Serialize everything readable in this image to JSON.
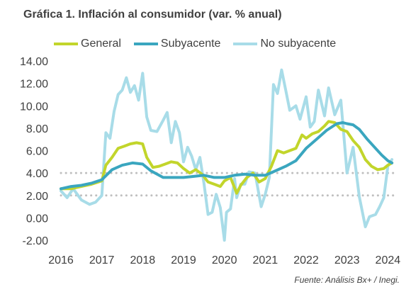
{
  "title": "Gráfica 1. Inflación al consumidor (var. % anual)",
  "source": "Fuente: Análisis Bx+ /  Inegi.",
  "colors": {
    "general": "#c2d52b",
    "subyacente": "#3aa6bf",
    "no_subyacente": "#a8dce8",
    "reference": "#bfbfbf",
    "text": "#404040"
  },
  "chart_data": {
    "type": "line",
    "title": "Gráfica 1. Inflación al consumidor (var. % anual)",
    "xlabel": "",
    "ylabel": "",
    "xlim": [
      2016.0,
      2024.15
    ],
    "ylim": [
      -2.0,
      14.0
    ],
    "ytick_labels": [
      "-2.00",
      "0.00",
      "2.00",
      "4.00",
      "6.00",
      "8.00",
      "10.00",
      "12.00",
      "14.00"
    ],
    "xtick_labels": [
      "2016",
      "2017",
      "2018",
      "2019",
      "2020",
      "2021",
      "2022",
      "2023",
      "2024"
    ],
    "reference_lines": [
      2.0,
      4.0
    ],
    "grid": false,
    "legend": "top",
    "series": [
      {
        "name": "General",
        "key": "general",
        "x": [
          2016.0,
          2016.25,
          2016.5,
          2016.75,
          2017.0,
          2017.1,
          2017.25,
          2017.4,
          2017.55,
          2017.7,
          2017.85,
          2018.0,
          2018.1,
          2018.25,
          2018.4,
          2018.55,
          2018.7,
          2018.85,
          2019.0,
          2019.15,
          2019.3,
          2019.45,
          2019.6,
          2019.75,
          2019.9,
          2020.0,
          2020.15,
          2020.3,
          2020.4,
          2020.55,
          2020.7,
          2020.85,
          2021.0,
          2021.15,
          2021.3,
          2021.45,
          2021.6,
          2021.75,
          2021.9,
          2022.0,
          2022.15,
          2022.3,
          2022.45,
          2022.55,
          2022.7,
          2022.85,
          2023.0,
          2023.15,
          2023.3,
          2023.45,
          2023.6,
          2023.75,
          2023.9,
          2024.0,
          2024.1
        ],
        "y": [
          2.6,
          2.6,
          2.8,
          3.0,
          3.3,
          4.7,
          5.4,
          6.2,
          6.4,
          6.6,
          6.7,
          6.6,
          5.4,
          4.5,
          4.6,
          4.8,
          5.0,
          4.9,
          4.4,
          4.0,
          4.3,
          3.9,
          3.2,
          3.0,
          2.8,
          3.3,
          3.6,
          2.2,
          2.9,
          3.6,
          4.0,
          3.2,
          3.5,
          4.6,
          6.0,
          5.8,
          6.0,
          6.2,
          7.4,
          7.1,
          7.5,
          7.7,
          8.2,
          8.6,
          8.5,
          7.9,
          7.7,
          6.9,
          6.3,
          5.2,
          4.6,
          4.3,
          4.4,
          4.7,
          4.9
        ]
      },
      {
        "name": "Subyacente",
        "key": "subyacente",
        "x": [
          2016.0,
          2016.25,
          2016.5,
          2016.75,
          2017.0,
          2017.25,
          2017.5,
          2017.75,
          2018.0,
          2018.2,
          2018.5,
          2018.75,
          2019.0,
          2019.25,
          2019.5,
          2019.75,
          2020.0,
          2020.25,
          2020.5,
          2020.75,
          2021.0,
          2021.25,
          2021.5,
          2021.75,
          2022.0,
          2022.25,
          2022.5,
          2022.75,
          2022.9,
          2023.0,
          2023.15,
          2023.3,
          2023.5,
          2023.7,
          2023.85,
          2024.0,
          2024.1
        ],
        "y": [
          2.6,
          2.8,
          2.9,
          3.1,
          3.4,
          4.3,
          4.7,
          4.9,
          4.8,
          4.2,
          3.6,
          3.6,
          3.6,
          3.7,
          3.8,
          3.6,
          3.6,
          3.8,
          3.9,
          3.8,
          3.8,
          4.2,
          4.6,
          5.1,
          6.2,
          7.0,
          7.8,
          8.4,
          8.5,
          8.4,
          8.3,
          7.9,
          7.0,
          6.2,
          5.6,
          5.1,
          4.9
        ]
      },
      {
        "name": "No subyacente",
        "key": "no_subyacente",
        "x": [
          2016.0,
          2016.15,
          2016.3,
          2016.5,
          2016.7,
          2016.85,
          2017.0,
          2017.1,
          2017.2,
          2017.3,
          2017.4,
          2017.5,
          2017.6,
          2017.7,
          2017.8,
          2017.9,
          2018.0,
          2018.1,
          2018.2,
          2018.35,
          2018.5,
          2018.6,
          2018.7,
          2018.8,
          2018.9,
          2019.0,
          2019.1,
          2019.2,
          2019.3,
          2019.4,
          2019.5,
          2019.6,
          2019.7,
          2019.8,
          2019.9,
          2020.0,
          2020.05,
          2020.15,
          2020.25,
          2020.3,
          2020.4,
          2020.5,
          2020.6,
          2020.75,
          2020.9,
          2021.0,
          2021.1,
          2021.2,
          2021.3,
          2021.4,
          2021.5,
          2021.6,
          2021.75,
          2021.85,
          2022.0,
          2022.1,
          2022.2,
          2022.3,
          2022.45,
          2022.55,
          2022.7,
          2022.85,
          2023.0,
          2023.15,
          2023.3,
          2023.45,
          2023.55,
          2023.7,
          2023.8,
          2023.9,
          2024.0,
          2024.1
        ],
        "y": [
          2.4,
          1.8,
          2.6,
          1.6,
          1.2,
          1.4,
          2.0,
          7.6,
          7.1,
          9.5,
          11.0,
          11.4,
          12.5,
          11.2,
          11.8,
          10.5,
          12.9,
          9.0,
          7.8,
          7.7,
          8.7,
          9.4,
          6.7,
          8.6,
          7.6,
          5.0,
          6.3,
          5.5,
          4.3,
          5.4,
          3.1,
          0.3,
          0.5,
          2.1,
          0.9,
          -2.0,
          0.5,
          0.8,
          3.5,
          1.8,
          3.0,
          3.0,
          4.1,
          4.0,
          1.0,
          2.1,
          3.6,
          11.9,
          11.1,
          13.2,
          11.4,
          9.6,
          10.0,
          8.8,
          10.8,
          8.1,
          8.6,
          11.4,
          9.1,
          11.6,
          9.2,
          10.5,
          4.0,
          6.3,
          1.9,
          -0.8,
          0.1,
          0.3,
          1.0,
          1.8,
          4.6,
          5.2
        ]
      }
    ]
  }
}
